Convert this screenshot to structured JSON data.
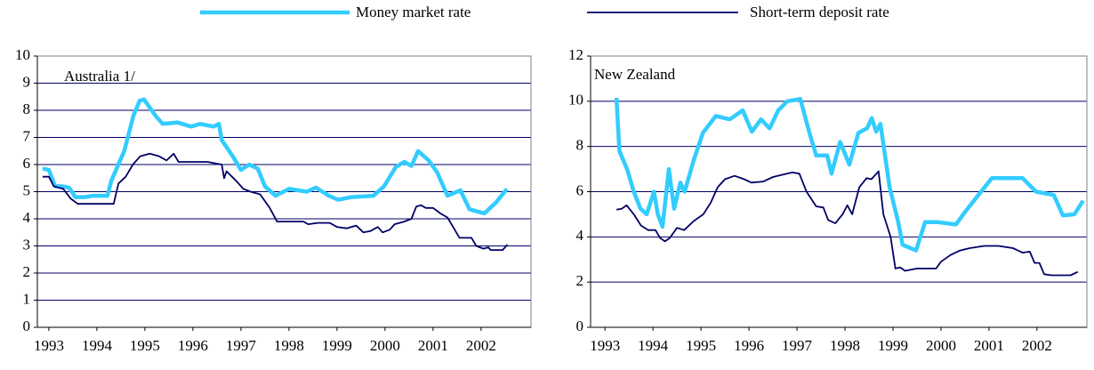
{
  "chart_data": [
    {
      "type": "line",
      "title": "Australia 1/",
      "xlim": [
        1992.76,
        2003.04
      ],
      "xticks": [
        1993,
        1994,
        1995,
        1996,
        1997,
        1998,
        1999,
        2000,
        2001,
        2002
      ],
      "ylim": [
        0,
        10
      ],
      "yticks": [
        0,
        1,
        2,
        3,
        4,
        5,
        6,
        7,
        8,
        9,
        10
      ],
      "grid": true,
      "series": [
        {
          "name": "Money market rate",
          "color": "#33ccff",
          "x": [
            1992.87,
            1993.0,
            1993.13,
            1993.28,
            1993.42,
            1993.55,
            1993.74,
            1993.92,
            1994.22,
            1994.3,
            1994.57,
            1994.76,
            1994.89,
            1994.98,
            1995.22,
            1995.37,
            1995.68,
            1995.96,
            1996.15,
            1996.43,
            1996.54,
            1996.6,
            1996.83,
            1997.0,
            1997.17,
            1997.35,
            1997.5,
            1997.72,
            1998.0,
            1998.37,
            1998.56,
            1998.83,
            1999.02,
            1999.3,
            1999.76,
            1999.98,
            2000.22,
            2000.4,
            2000.55,
            2000.69,
            2000.91,
            2001.09,
            2001.3,
            2001.57,
            2001.76,
            2002.07,
            2002.31,
            2002.54
          ],
          "values": [
            5.85,
            5.8,
            5.2,
            5.2,
            5.15,
            4.8,
            4.8,
            4.85,
            4.85,
            5.4,
            6.5,
            7.8,
            8.35,
            8.4,
            7.8,
            7.5,
            7.55,
            7.4,
            7.5,
            7.4,
            7.5,
            6.9,
            6.3,
            5.8,
            6.0,
            5.85,
            5.2,
            4.85,
            5.1,
            5.0,
            5.15,
            4.85,
            4.7,
            4.8,
            4.85,
            5.2,
            5.9,
            6.1,
            5.95,
            6.5,
            6.15,
            5.7,
            4.85,
            5.05,
            4.35,
            4.2,
            4.6,
            5.1
          ]
        },
        {
          "name": "Short-term deposit rate",
          "color": "#000066",
          "x": [
            1992.87,
            1993.0,
            1993.1,
            1993.3,
            1993.45,
            1993.6,
            1994.35,
            1994.45,
            1994.6,
            1994.75,
            1994.9,
            1995.1,
            1995.3,
            1995.45,
            1995.6,
            1995.7,
            1996.3,
            1996.6,
            1996.65,
            1996.7,
            1996.9,
            1997.05,
            1997.2,
            1997.4,
            1997.6,
            1997.75,
            1998.3,
            1998.4,
            1998.6,
            1998.85,
            1999.0,
            1999.2,
            1999.4,
            1999.55,
            1999.7,
            1999.85,
            1999.95,
            2000.1,
            2000.2,
            2000.4,
            2000.55,
            2000.65,
            2000.75,
            2000.85,
            2001.0,
            2001.15,
            2001.3,
            2001.45,
            2001.55,
            2001.8,
            2001.9,
            2002.05,
            2002.15,
            2002.2,
            2002.45,
            2002.55
          ],
          "values": [
            5.55,
            5.55,
            5.2,
            5.1,
            4.75,
            4.55,
            4.55,
            5.3,
            5.55,
            6.0,
            6.3,
            6.4,
            6.3,
            6.15,
            6.4,
            6.1,
            6.1,
            6.0,
            5.5,
            5.75,
            5.4,
            5.1,
            5.0,
            4.9,
            4.4,
            3.9,
            3.9,
            3.8,
            3.85,
            3.85,
            3.7,
            3.65,
            3.75,
            3.5,
            3.55,
            3.7,
            3.5,
            3.6,
            3.8,
            3.9,
            4.0,
            4.45,
            4.5,
            4.4,
            4.4,
            4.2,
            4.05,
            3.6,
            3.3,
            3.3,
            3.0,
            2.9,
            2.95,
            2.85,
            2.85,
            3.05
          ]
        }
      ]
    },
    {
      "type": "line",
      "title": "New Zealand",
      "xlim": [
        1992.7,
        2003.04
      ],
      "xticks": [
        1993,
        1994,
        1995,
        1996,
        1997,
        1998,
        1999,
        2000,
        2001,
        2002
      ],
      "ylim": [
        0,
        12
      ],
      "yticks": [
        0,
        2,
        4,
        6,
        8,
        10,
        12
      ],
      "grid": true,
      "series": [
        {
          "color": "#33ccff",
          "x": [
            1993.24,
            1993.3,
            1993.46,
            1993.6,
            1993.74,
            1993.87,
            1994.02,
            1994.1,
            1994.2,
            1994.33,
            1994.44,
            1994.57,
            1994.66,
            1994.85,
            1995.04,
            1995.31,
            1995.6,
            1995.87,
            1996.06,
            1996.25,
            1996.43,
            1996.61,
            1996.8,
            1997.07,
            1997.26,
            1997.4,
            1997.63,
            1997.72,
            1997.9,
            1998.09,
            1998.28,
            1998.46,
            1998.56,
            1998.65,
            1998.74,
            1998.93,
            1999.11,
            1999.2,
            1999.48,
            1999.67,
            1999.94,
            2000.31,
            2000.5,
            2000.78,
            2001.06,
            2001.7,
            2001.98,
            2002.35,
            2002.54,
            2002.78,
            2002.96
          ],
          "values": [
            10.15,
            7.8,
            7.0,
            6.0,
            5.25,
            5.0,
            6.0,
            5.0,
            4.45,
            7.0,
            5.25,
            6.4,
            6.0,
            7.4,
            8.6,
            9.35,
            9.2,
            9.6,
            8.65,
            9.2,
            8.8,
            9.6,
            10.0,
            10.1,
            8.6,
            7.6,
            7.6,
            6.8,
            8.2,
            7.2,
            8.6,
            8.8,
            9.25,
            8.65,
            9.0,
            6.2,
            4.65,
            3.65,
            3.4,
            4.65,
            4.65,
            4.55,
            5.1,
            5.85,
            6.6,
            6.6,
            6.0,
            5.85,
            4.95,
            5.0,
            5.6
          ]
        },
        {
          "color": "#000066",
          "x": [
            1993.24,
            1993.35,
            1993.45,
            1993.6,
            1993.75,
            1993.9,
            1994.05,
            1994.15,
            1994.25,
            1994.35,
            1994.5,
            1994.65,
            1994.85,
            1995.05,
            1995.2,
            1995.35,
            1995.5,
            1995.7,
            1995.9,
            1996.05,
            1996.3,
            1996.5,
            1996.7,
            1996.9,
            1997.05,
            1997.2,
            1997.4,
            1997.55,
            1997.65,
            1997.8,
            1997.95,
            1998.05,
            1998.15,
            1998.3,
            1998.45,
            1998.55,
            1998.7,
            1998.8,
            1998.95,
            1999.05,
            1999.15,
            1999.25,
            1999.5,
            1999.9,
            2000.0,
            2000.2,
            2000.4,
            2000.6,
            2000.9,
            2001.2,
            2001.5,
            2001.7,
            2001.85,
            2001.95,
            2002.05,
            2002.15,
            2002.3,
            2002.7,
            2002.85
          ],
          "values": [
            5.2,
            5.25,
            5.4,
            5.0,
            4.5,
            4.3,
            4.3,
            3.95,
            3.8,
            3.95,
            4.4,
            4.3,
            4.7,
            5.0,
            5.5,
            6.2,
            6.55,
            6.7,
            6.55,
            6.4,
            6.45,
            6.65,
            6.75,
            6.85,
            6.8,
            6.0,
            5.35,
            5.3,
            4.75,
            4.6,
            5.0,
            5.4,
            5.0,
            6.2,
            6.6,
            6.55,
            6.9,
            5.0,
            4.0,
            2.6,
            2.65,
            2.5,
            2.6,
            2.6,
            2.9,
            3.2,
            3.4,
            3.5,
            3.6,
            3.6,
            3.5,
            3.3,
            3.35,
            2.85,
            2.85,
            2.35,
            2.3,
            2.3,
            2.45
          ]
        }
      ]
    }
  ]
}
